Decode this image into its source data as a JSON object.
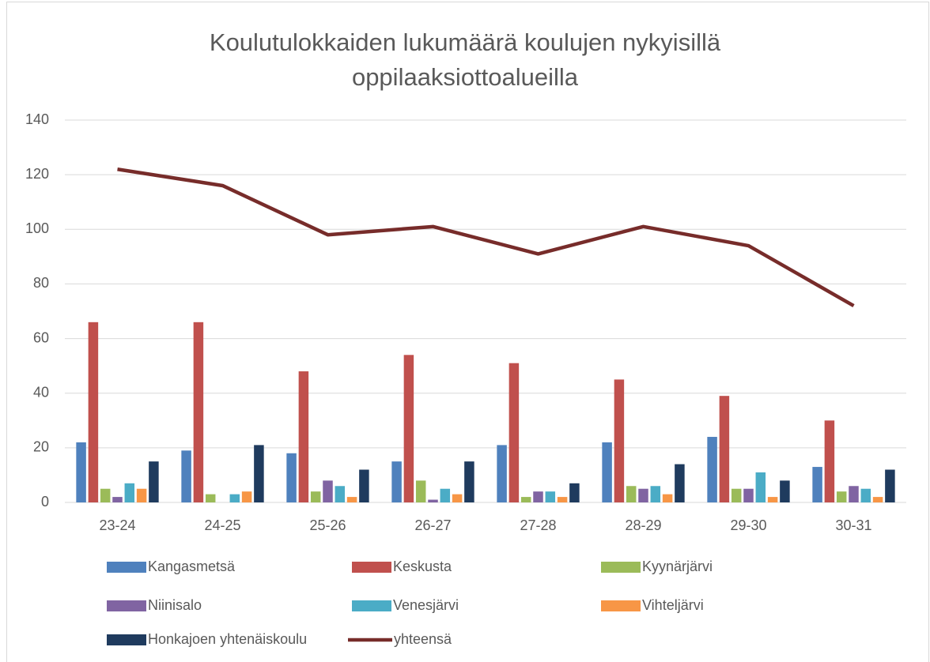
{
  "chart_data": {
    "type": "bar",
    "title": "Koulutulokkaiden lukumäärä koulujen nykyisillä oppilaaksiottoalueilla",
    "categories": [
      "23-24",
      "24-25",
      "25-26",
      "26-27",
      "27-28",
      "28-29",
      "29-30",
      "30-31"
    ],
    "series": [
      {
        "name": "Kangasmetsä",
        "color": "#4f81bd",
        "values": [
          22,
          19,
          18,
          15,
          21,
          22,
          24,
          13
        ]
      },
      {
        "name": "Keskusta",
        "color": "#c0504d",
        "values": [
          66,
          66,
          48,
          54,
          51,
          45,
          39,
          30
        ]
      },
      {
        "name": "Kyynärjärvi",
        "color": "#9bbb59",
        "values": [
          5,
          3,
          4,
          8,
          2,
          6,
          5,
          4
        ]
      },
      {
        "name": "Niinisalo",
        "color": "#8064a2",
        "values": [
          2,
          0,
          8,
          1,
          4,
          5,
          5,
          6
        ]
      },
      {
        "name": "Venesjärvi",
        "color": "#4bacc6",
        "values": [
          7,
          3,
          6,
          5,
          4,
          6,
          11,
          5
        ]
      },
      {
        "name": "Vihteljärvi",
        "color": "#f79646",
        "values": [
          5,
          4,
          2,
          3,
          2,
          3,
          2,
          2
        ]
      },
      {
        "name": "Honkajoen yhtenäiskoulu",
        "color": "#1f3b5e",
        "values": [
          15,
          21,
          12,
          15,
          7,
          14,
          8,
          12
        ]
      },
      {
        "name": "yhteensä",
        "color": "#772c2a",
        "type": "line",
        "values": [
          122,
          116,
          98,
          101,
          91,
          101,
          94,
          72
        ]
      }
    ],
    "ylim": [
      0,
      140
    ],
    "yticks": [
      0,
      20,
      40,
      60,
      80,
      100,
      120,
      140
    ],
    "grid": true
  }
}
